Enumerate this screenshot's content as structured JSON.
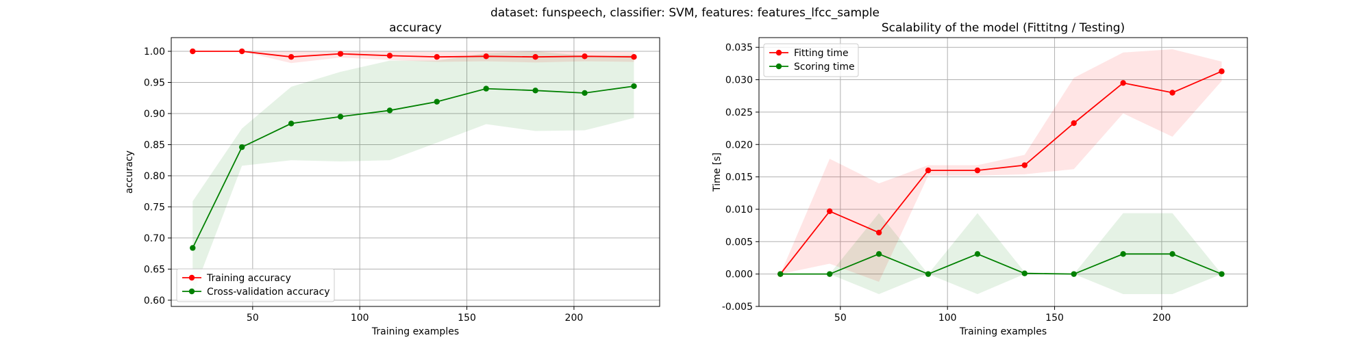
{
  "suptitle": "dataset: funspeech, classifier: SVM, features: features_lfcc_sample",
  "chart_data": [
    {
      "type": "line",
      "title": "accuracy",
      "xlabel": "Training examples",
      "ylabel": "accuracy",
      "xlim": [
        12,
        240
      ],
      "ylim": [
        0.59,
        1.022
      ],
      "xticks": [
        50,
        100,
        150,
        200
      ],
      "yticks": [
        0.6,
        0.65,
        0.7,
        0.75,
        0.8,
        0.85,
        0.9,
        0.95,
        1.0
      ],
      "ytick_decimals": 2,
      "grid": true,
      "legend_position": "lower left",
      "x": [
        22,
        45,
        68,
        91,
        114,
        136,
        159,
        182,
        205,
        228
      ],
      "series": [
        {
          "name": "Training accuracy",
          "color": "#ff0000",
          "band_color": "#ff0000",
          "values": [
            1.0,
            1.0,
            0.991,
            0.996,
            0.993,
            0.991,
            0.992,
            0.991,
            0.992,
            0.991
          ],
          "band_low": [
            1.0,
            1.0,
            0.981,
            0.99,
            0.986,
            0.983,
            0.984,
            0.982,
            0.984,
            0.983
          ],
          "band_high": [
            1.0,
            1.0,
            1.0,
            1.0,
            1.0,
            0.999,
            1.0,
            1.0,
            1.0,
            0.999
          ]
        },
        {
          "name": "Cross-validation accuracy",
          "color": "#008000",
          "band_color": "#008000",
          "values": [
            0.684,
            0.846,
            0.884,
            0.895,
            0.905,
            0.919,
            0.94,
            0.937,
            0.933,
            0.944
          ],
          "band_low": [
            0.609,
            0.816,
            0.825,
            0.823,
            0.825,
            0.853,
            0.883,
            0.872,
            0.873,
            0.893
          ],
          "band_high": [
            0.759,
            0.876,
            0.943,
            0.967,
            0.985,
            0.985,
            0.997,
            1.0,
            0.993,
            0.994
          ]
        }
      ]
    },
    {
      "type": "line",
      "title": "Scalability of the model (Fittitng / Testing)",
      "xlabel": "Training examples",
      "ylabel": "Time [s]",
      "xlim": [
        12,
        240
      ],
      "ylim": [
        -0.005,
        0.0365
      ],
      "xticks": [
        50,
        100,
        150,
        200
      ],
      "yticks": [
        -0.005,
        0.0,
        0.005,
        0.01,
        0.015,
        0.02,
        0.025,
        0.03,
        0.035
      ],
      "ytick_decimals": 3,
      "grid": true,
      "legend_position": "upper left",
      "x": [
        22,
        45,
        68,
        91,
        114,
        136,
        159,
        182,
        205,
        228
      ],
      "series": [
        {
          "name": "Fitting time",
          "color": "#ff0000",
          "band_color": "#ff0000",
          "values": [
            0.0,
            0.0097,
            0.0064,
            0.016,
            0.016,
            0.0168,
            0.0233,
            0.0295,
            0.028,
            0.0313
          ],
          "band_low": [
            0.0,
            0.0016,
            -0.0012,
            0.0152,
            0.0152,
            0.0154,
            0.0162,
            0.0248,
            0.0212,
            0.0298
          ],
          "band_high": [
            0.0,
            0.0178,
            0.014,
            0.0168,
            0.0168,
            0.0184,
            0.0303,
            0.0342,
            0.0347,
            0.0328
          ]
        },
        {
          "name": "Scoring time",
          "color": "#008000",
          "band_color": "#008000",
          "values": [
            0.0,
            0.0,
            0.0031,
            0.0,
            0.0031,
            0.0001,
            0.0,
            0.0031,
            0.0031,
            0.0
          ],
          "band_low": [
            0.0,
            0.0,
            -0.0031,
            0.0,
            -0.0031,
            0.0,
            0.0,
            -0.0031,
            -0.0031,
            0.0
          ],
          "band_high": [
            0.0,
            0.0,
            0.0094,
            0.0,
            0.0094,
            0.0003,
            0.0,
            0.0094,
            0.0094,
            0.0
          ]
        }
      ]
    }
  ]
}
